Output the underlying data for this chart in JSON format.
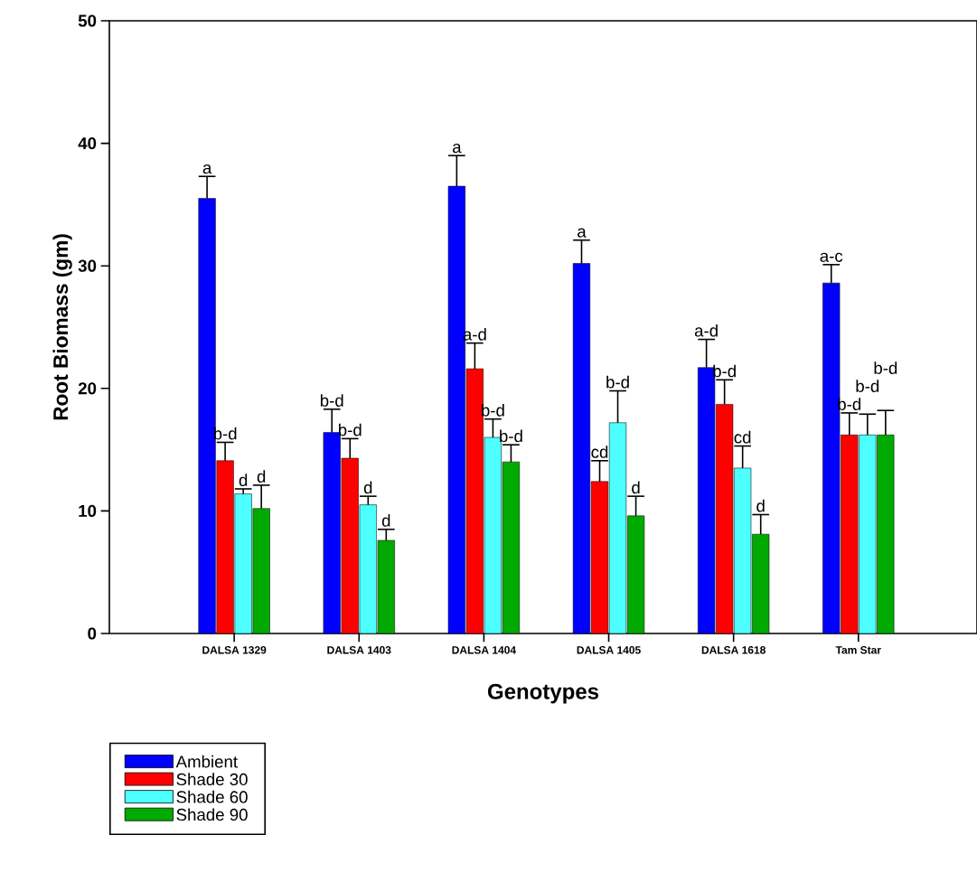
{
  "chart_data": {
    "type": "bar",
    "xlabel": "Genotypes",
    "ylabel": "Root Biomass (gm)",
    "categories": [
      "DALSA 1329",
      "DALSA 1403",
      "DALSA 1404",
      "DALSA 1405",
      "DALSA 1618",
      "Tam Star"
    ],
    "series": [
      {
        "name": "Ambient",
        "color": "#0000ff",
        "values": [
          35.5,
          16.4,
          36.5,
          30.2,
          21.7,
          28.6
        ],
        "errors": [
          1.8,
          1.9,
          2.5,
          1.9,
          2.3,
          1.5
        ]
      },
      {
        "name": "Shade 30",
        "color": "#ff0000",
        "values": [
          14.1,
          14.3,
          21.6,
          12.4,
          18.7,
          16.2
        ],
        "errors": [
          1.5,
          1.6,
          2.1,
          1.7,
          2.0,
          1.8
        ]
      },
      {
        "name": "Shade 60",
        "color": "#4dffff",
        "values": [
          11.4,
          10.5,
          16.0,
          17.2,
          13.5,
          16.2
        ],
        "errors": [
          0.4,
          0.7,
          1.5,
          2.6,
          1.8,
          1.7
        ]
      },
      {
        "name": "Shade 90",
        "color": "#00aa00",
        "values": [
          10.2,
          7.6,
          14.0,
          9.6,
          8.1,
          16.2
        ],
        "errors": [
          1.9,
          0.9,
          1.4,
          1.6,
          1.6,
          2.0
        ]
      }
    ],
    "ylim": [
      0,
      50
    ],
    "yticks": [
      0,
      10,
      20,
      30,
      40,
      50
    ],
    "legend": "bottom left",
    "grid": false,
    "annotations": [
      "a",
      "b-d",
      "d",
      "d",
      "b-d",
      "b-d",
      "d",
      "d",
      "a",
      "a-d",
      "b-d",
      "b-d",
      "a",
      "cd",
      "b-d",
      "d",
      "a-d",
      "b-d",
      "cd",
      "d",
      "a-c",
      "b-d",
      "b-d",
      "b-d"
    ]
  }
}
